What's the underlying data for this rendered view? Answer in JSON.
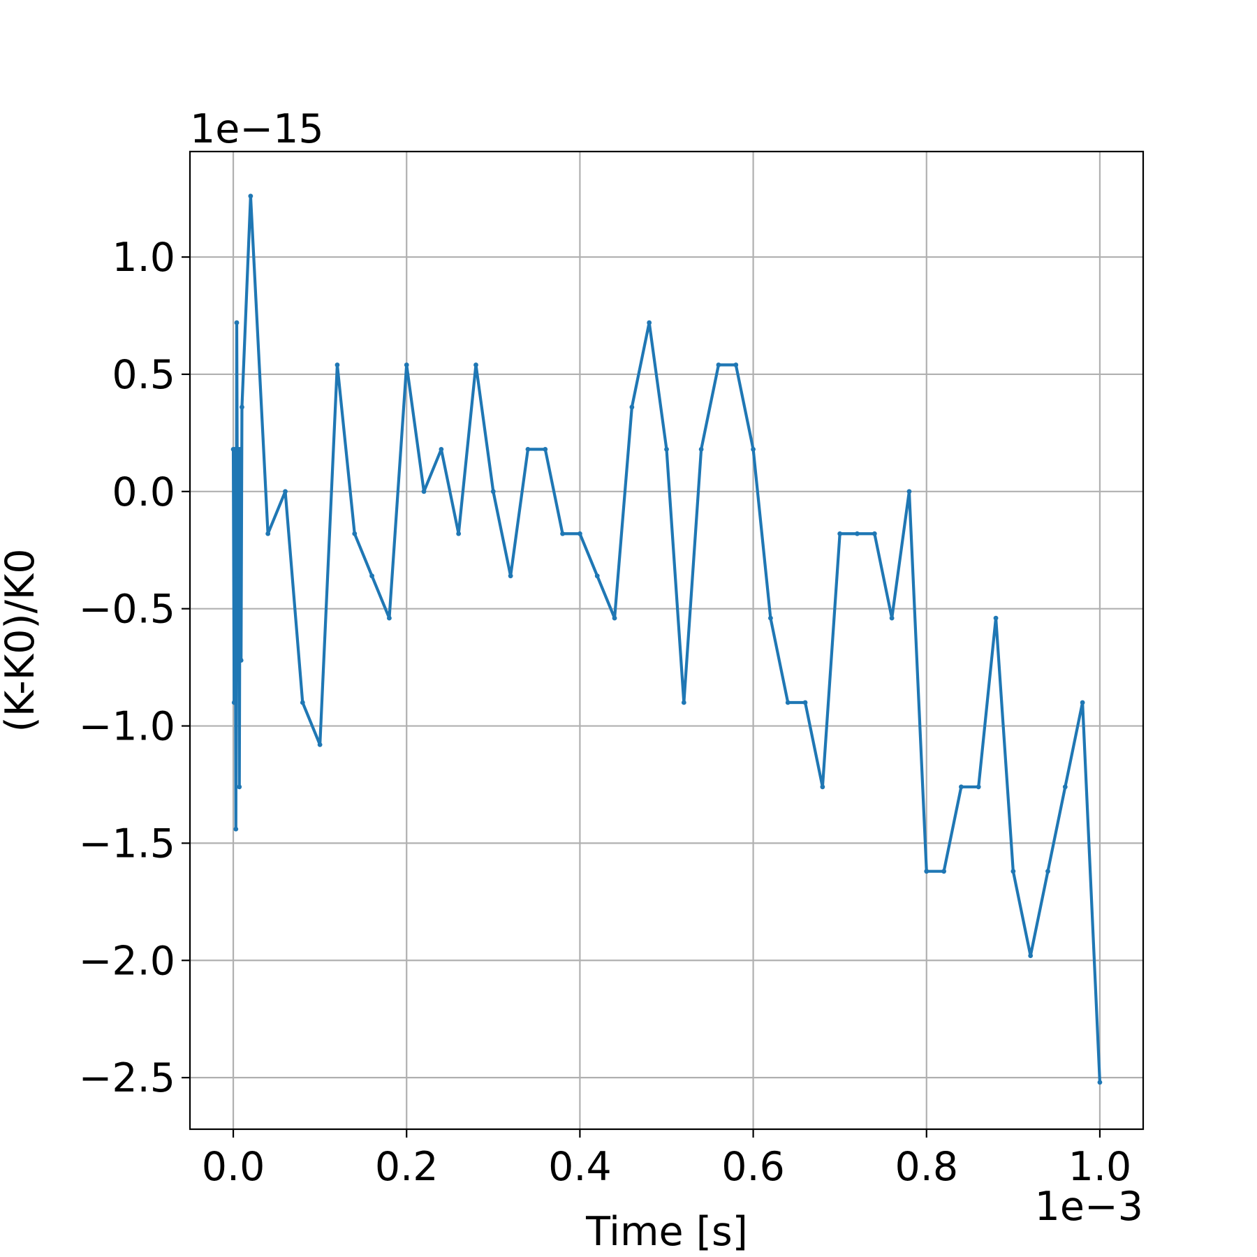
{
  "chart_data": {
    "type": "line",
    "title": "",
    "xlabel": "Time [s]",
    "ylabel": "(K-K0)/K0",
    "x_offset_text": "1e−3",
    "y_offset_text": "1e−15",
    "x_ticks": [
      {
        "value": 0.0,
        "label": "0.0"
      },
      {
        "value": 0.2,
        "label": "0.2"
      },
      {
        "value": 0.4,
        "label": "0.4"
      },
      {
        "value": 0.6,
        "label": "0.6"
      },
      {
        "value": 0.8,
        "label": "0.8"
      },
      {
        "value": 1.0,
        "label": "1.0"
      }
    ],
    "y_ticks": [
      {
        "value": 1.0,
        "label": "1.0"
      },
      {
        "value": 0.5,
        "label": "0.5"
      },
      {
        "value": 0.0,
        "label": "0.0"
      },
      {
        "value": -0.5,
        "label": "−0.5"
      },
      {
        "value": -1.0,
        "label": "−1.0"
      },
      {
        "value": -1.5,
        "label": "−1.5"
      },
      {
        "value": -2.0,
        "label": "−2.0"
      },
      {
        "value": -2.5,
        "label": "−2.5"
      }
    ],
    "xlim": [
      -0.05,
      1.05
    ],
    "ylim": [
      -2.72,
      1.45
    ],
    "grid": true,
    "line_color": "#1f77b4",
    "grid_color": "#b0b0b0",
    "series": [
      {
        "x": [
          0.0,
          0.001,
          0.002,
          0.003,
          0.004,
          0.005,
          0.006,
          0.007,
          0.008,
          0.009,
          0.01,
          0.02,
          0.04,
          0.06,
          0.08,
          0.1,
          0.12,
          0.14,
          0.16,
          0.18,
          0.2,
          0.22,
          0.24,
          0.26,
          0.28,
          0.3,
          0.32,
          0.34,
          0.36,
          0.38,
          0.4,
          0.42,
          0.44,
          0.46,
          0.48,
          0.5,
          0.52,
          0.54,
          0.56,
          0.58,
          0.6,
          0.62,
          0.64,
          0.66,
          0.68,
          0.7,
          0.72,
          0.74,
          0.76,
          0.78,
          0.8,
          0.82,
          0.84,
          0.86,
          0.88,
          0.9,
          0.92,
          0.94,
          0.96,
          0.98,
          1.0
        ],
        "y": [
          0.18,
          -0.9,
          0.18,
          -1.44,
          0.72,
          -0.36,
          0.18,
          -1.26,
          0.18,
          -0.72,
          0.36,
          1.26,
          -0.18,
          0.0,
          -0.9,
          -1.08,
          0.54,
          -0.18,
          -0.36,
          -0.54,
          0.54,
          0.0,
          0.18,
          -0.18,
          0.54,
          0.0,
          -0.36,
          0.18,
          0.18,
          -0.18,
          -0.18,
          -0.36,
          -0.54,
          0.36,
          0.72,
          0.18,
          -0.9,
          0.18,
          0.54,
          0.54,
          0.18,
          -0.54,
          -0.9,
          -0.9,
          -1.26,
          -0.18,
          -0.18,
          -0.18,
          -0.54,
          0.0,
          -1.62,
          -1.62,
          -1.26,
          -1.26,
          -0.54,
          -1.62,
          -1.98,
          -1.62,
          -1.26,
          -0.9,
          -2.52
        ]
      }
    ]
  }
}
